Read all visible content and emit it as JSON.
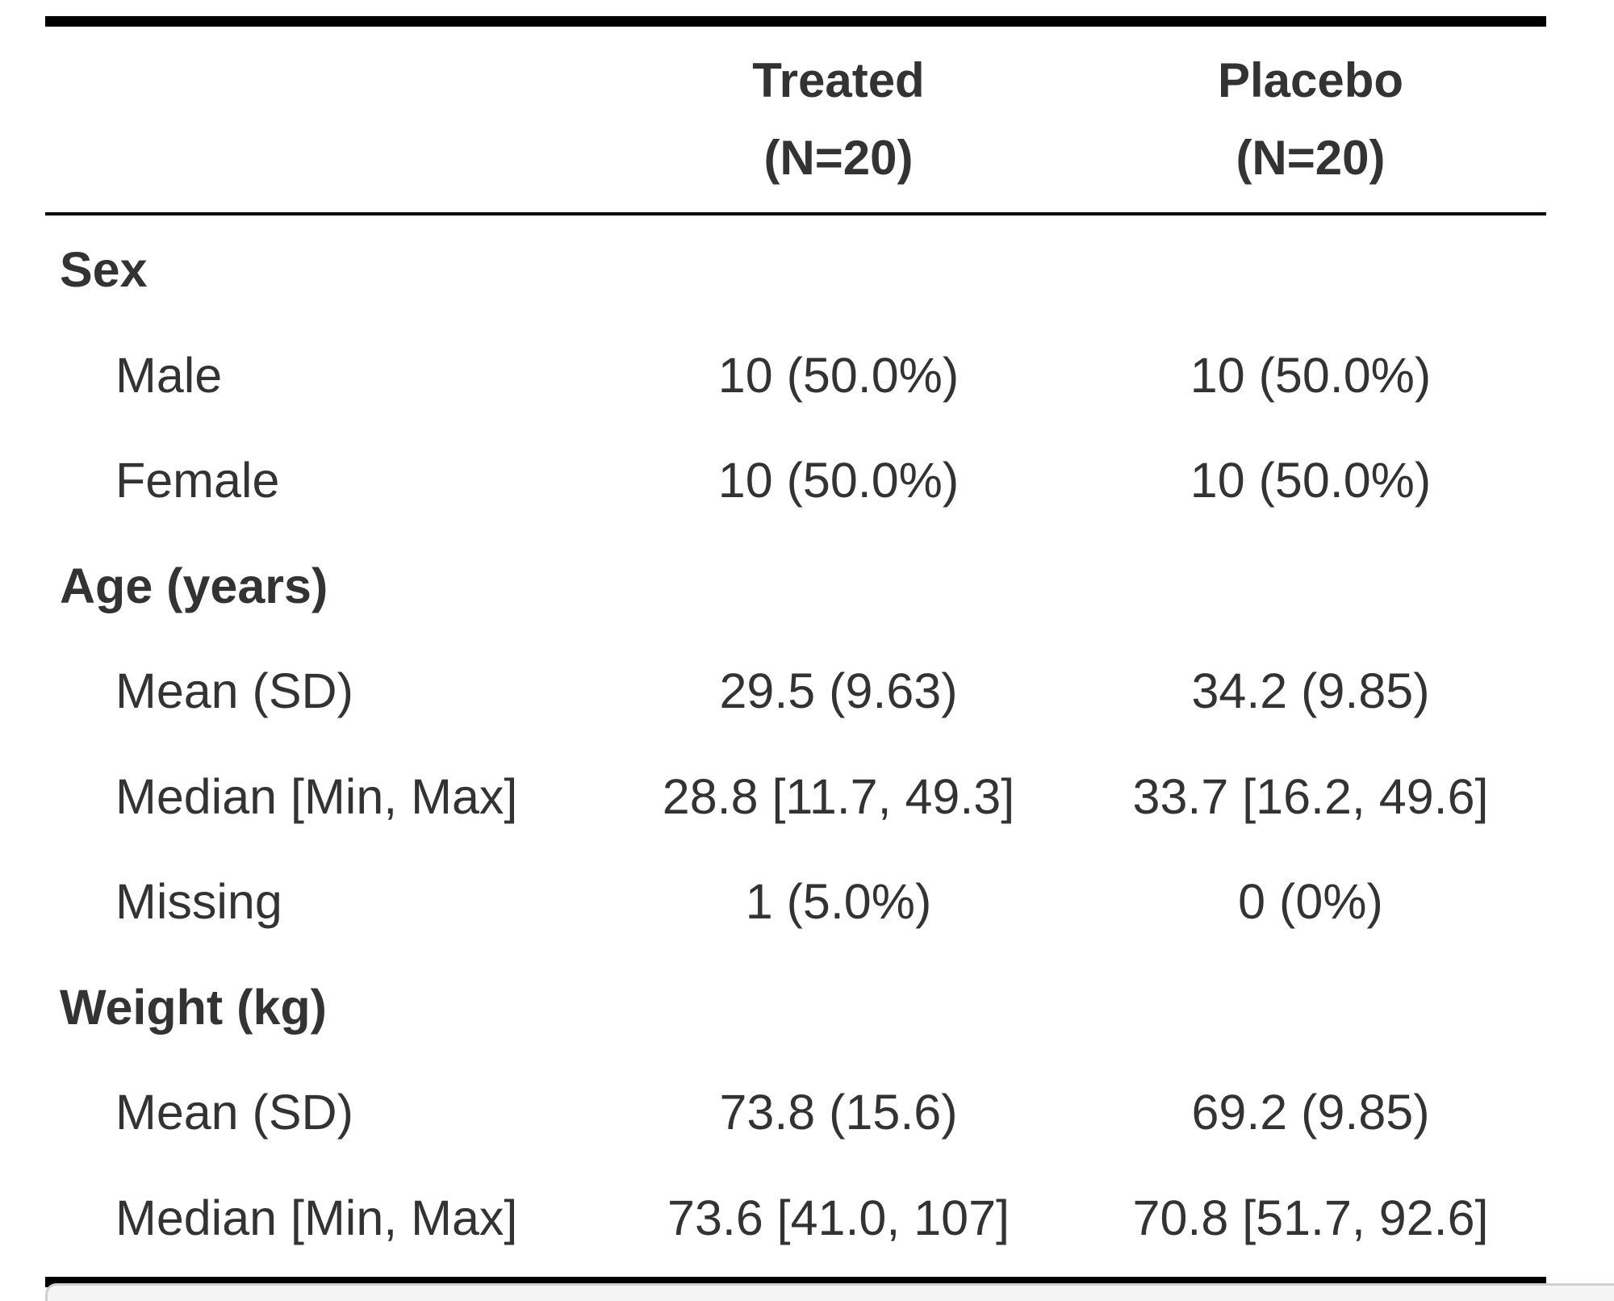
{
  "table": {
    "columns": [
      {
        "name": "Treated",
        "n": "(N=20)"
      },
      {
        "name": "Placebo",
        "n": "(N=20)"
      }
    ],
    "groups": [
      {
        "label": "Sex",
        "rows": [
          {
            "label": "Male",
            "treated": "10 (50.0%)",
            "placebo": "10 (50.0%)"
          },
          {
            "label": "Female",
            "treated": "10 (50.0%)",
            "placebo": "10 (50.0%)"
          }
        ]
      },
      {
        "label": "Age (years)",
        "rows": [
          {
            "label": "Mean (SD)",
            "treated": "29.5 (9.63)",
            "placebo": "34.2 (9.85)"
          },
          {
            "label": "Median [Min, Max]",
            "treated": "28.8 [11.7, 49.3]",
            "placebo": "33.7 [16.2, 49.6]"
          },
          {
            "label": "Missing",
            "treated": "1 (5.0%)",
            "placebo": "0 (0%)"
          }
        ]
      },
      {
        "label": "Weight (kg)",
        "rows": [
          {
            "label": "Mean (SD)",
            "treated": "73.8 (15.6)",
            "placebo": "69.2 (9.85)"
          },
          {
            "label": "Median [Min, Max]",
            "treated": "73.6 [41.0, 107]",
            "placebo": "70.8 [51.7, 92.6]"
          }
        ]
      }
    ]
  }
}
